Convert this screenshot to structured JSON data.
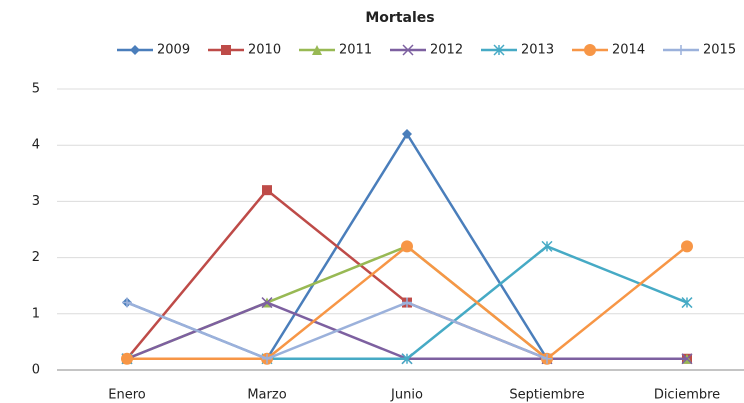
{
  "chart_data": {
    "type": "line",
    "title": "Mortales",
    "categories": [
      "Enero",
      "Marzo",
      "Junio",
      "Septiembre",
      "Diciembre"
    ],
    "series": [
      {
        "name": "2009",
        "color": "#4a7ebb",
        "marker": "diamond",
        "values": [
          1.2,
          0.2,
          4.2,
          0.2,
          0.2
        ]
      },
      {
        "name": "2010",
        "color": "#be4b48",
        "marker": "square",
        "values": [
          0.2,
          3.2,
          1.2,
          0.2,
          0.2
        ]
      },
      {
        "name": "2011",
        "color": "#98b954",
        "marker": "triangle",
        "values": [
          0.2,
          1.2,
          2.2,
          0.2,
          0.2
        ]
      },
      {
        "name": "2012",
        "color": "#7d60a0",
        "marker": "x",
        "values": [
          0.2,
          1.2,
          0.2,
          0.2,
          0.2
        ]
      },
      {
        "name": "2013",
        "color": "#46aac5",
        "marker": "star",
        "values": [
          0.2,
          0.2,
          0.2,
          2.2,
          1.2
        ]
      },
      {
        "name": "2014",
        "color": "#f79646",
        "marker": "circle",
        "values": [
          0.2,
          0.2,
          2.2,
          0.2,
          2.2
        ]
      },
      {
        "name": "2015",
        "color": "#9bb1db",
        "marker": "plus",
        "values": [
          1.2,
          0.2,
          1.2,
          0.2,
          null
        ]
      }
    ],
    "ylim": [
      0,
      5
    ],
    "yticks": [
      0,
      1,
      2,
      3,
      4,
      5
    ],
    "grid": true
  }
}
